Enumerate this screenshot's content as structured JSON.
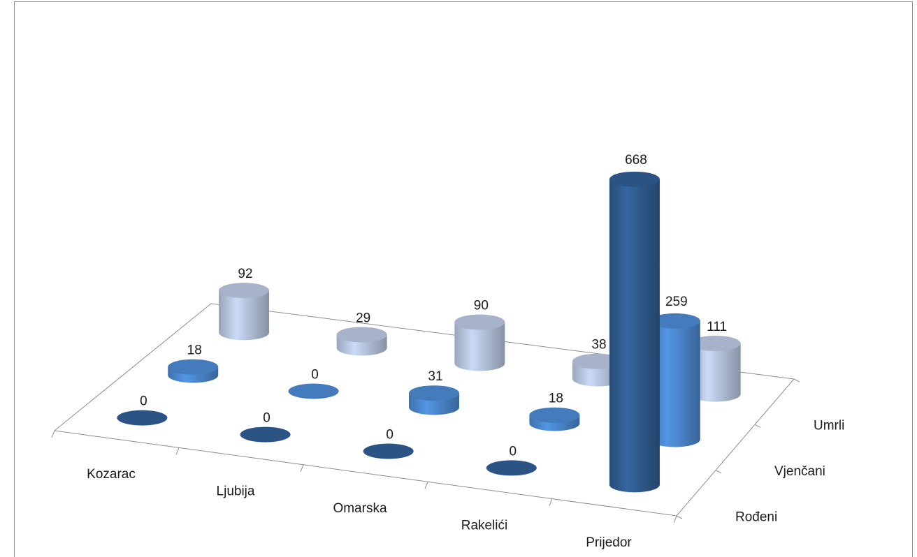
{
  "chart_data": {
    "type": "bar",
    "style": "3d-cylinder",
    "title": "",
    "categories": [
      "Kozarac",
      "Ljubija",
      "Omarska",
      "Rakelići",
      "Prijedor"
    ],
    "series": [
      {
        "name": "Rođeni",
        "values": [
          0,
          0,
          0,
          0,
          668
        ],
        "color": "#2f5a8e"
      },
      {
        "name": "Vjenčani",
        "values": [
          18,
          0,
          31,
          18,
          259
        ],
        "color": "#4a86cc"
      },
      {
        "name": "Umrli",
        "values": [
          92,
          29,
          90,
          38,
          111
        ],
        "color": "#b4c3dc"
      }
    ],
    "data_labels": true,
    "grid": false,
    "legend": "none"
  }
}
